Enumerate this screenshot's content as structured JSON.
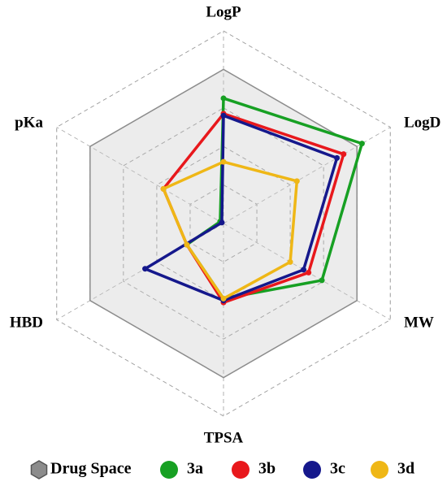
{
  "chart_data": {
    "type": "radar",
    "categories": [
      "LogP",
      "LogD",
      "MW",
      "TPSA",
      "HBD",
      "pKa"
    ],
    "rlim": [
      0,
      1
    ],
    "rticks": [
      0.2,
      0.4,
      0.6,
      0.8,
      1.0
    ],
    "grid": true,
    "series": [
      {
        "name": "Drug Space",
        "color": "#8c8c8c",
        "values": [
          0.8,
          0.8,
          0.8,
          0.8,
          0.8,
          0.8
        ]
      },
      {
        "name": "3a",
        "color": "#17a023",
        "values": [
          0.65,
          0.83,
          0.59,
          0.39,
          0.22,
          0.02
        ]
      },
      {
        "name": "3b",
        "color": "#e8181c",
        "values": [
          0.57,
          0.72,
          0.51,
          0.41,
          0.22,
          0.36
        ]
      },
      {
        "name": "3c",
        "color": "#15188c",
        "values": [
          0.56,
          0.68,
          0.48,
          0.4,
          0.47,
          0.01
        ]
      },
      {
        "name": "3d",
        "color": "#efb716",
        "values": [
          0.32,
          0.44,
          0.4,
          0.39,
          0.22,
          0.36
        ]
      }
    ]
  }
}
